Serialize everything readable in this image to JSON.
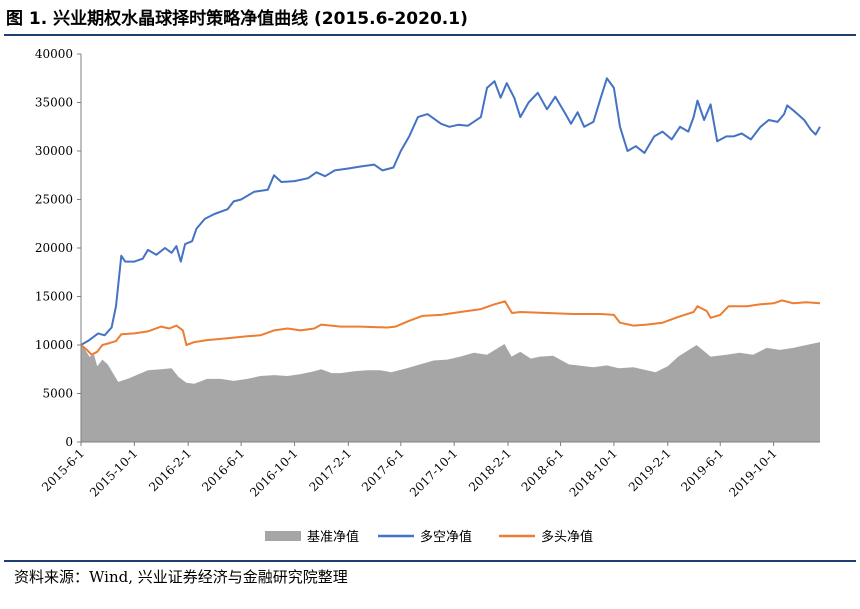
{
  "figure": {
    "title": "图 1. 兴业期权水晶球择时策略净值曲线 (2015.6-2020.1)",
    "source": "资料来源：Wind, 兴业证券经济与金融研究院整理"
  },
  "chart_data": {
    "type": "line",
    "title": "",
    "xlabel": "",
    "ylabel": "",
    "x_range": [
      "2015-06-01",
      "2020-01-15"
    ],
    "ylim": [
      0,
      40000
    ],
    "y_ticks": [
      0,
      5000,
      10000,
      15000,
      20000,
      25000,
      30000,
      35000,
      40000
    ],
    "x_tick_labels": [
      "2015-6-1",
      "2015-10-1",
      "2016-2-1",
      "2016-6-1",
      "2016-10-1",
      "2017-2-1",
      "2017-6-1",
      "2017-10-1",
      "2018-2-1",
      "2018-6-1",
      "2018-10-1",
      "2019-2-1",
      "2019-6-1",
      "2019-10-1"
    ],
    "x_tick_dates": [
      "2015-06-01",
      "2015-10-01",
      "2016-02-01",
      "2016-06-01",
      "2016-10-01",
      "2017-02-01",
      "2017-06-01",
      "2017-10-01",
      "2018-02-01",
      "2018-06-01",
      "2018-10-01",
      "2019-02-01",
      "2019-06-01",
      "2019-10-01"
    ],
    "grid": false,
    "legend_position": "bottom",
    "series": [
      {
        "name": "基准净值",
        "style": "area",
        "color": "#a6a6a6",
        "points": [
          [
            "2015-06-01",
            10000
          ],
          [
            "2015-06-10",
            9600
          ],
          [
            "2015-06-20",
            8800
          ],
          [
            "2015-07-01",
            9000
          ],
          [
            "2015-07-08",
            7800
          ],
          [
            "2015-07-20",
            8500
          ],
          [
            "2015-08-01",
            8000
          ],
          [
            "2015-08-25",
            6200
          ],
          [
            "2015-09-15",
            6500
          ],
          [
            "2015-10-01",
            6800
          ],
          [
            "2015-11-01",
            7400
          ],
          [
            "2015-12-01",
            7500
          ],
          [
            "2015-12-25",
            7600
          ],
          [
            "2016-01-10",
            6700
          ],
          [
            "2016-01-28",
            6100
          ],
          [
            "2016-02-15",
            6000
          ],
          [
            "2016-03-15",
            6500
          ],
          [
            "2016-04-15",
            6500
          ],
          [
            "2016-05-15",
            6300
          ],
          [
            "2016-06-15",
            6500
          ],
          [
            "2016-07-15",
            6800
          ],
          [
            "2016-08-15",
            6900
          ],
          [
            "2016-09-15",
            6800
          ],
          [
            "2016-10-15",
            7000
          ],
          [
            "2016-11-15",
            7300
          ],
          [
            "2016-12-01",
            7500
          ],
          [
            "2016-12-25",
            7100
          ],
          [
            "2017-01-15",
            7100
          ],
          [
            "2017-02-15",
            7300
          ],
          [
            "2017-03-15",
            7400
          ],
          [
            "2017-04-15",
            7400
          ],
          [
            "2017-05-10",
            7200
          ],
          [
            "2017-06-15",
            7600
          ],
          [
            "2017-07-15",
            8000
          ],
          [
            "2017-08-15",
            8400
          ],
          [
            "2017-09-15",
            8500
          ],
          [
            "2017-10-15",
            8800
          ],
          [
            "2017-11-15",
            9200
          ],
          [
            "2017-12-15",
            9000
          ],
          [
            "2018-01-24",
            10100
          ],
          [
            "2018-02-09",
            8800
          ],
          [
            "2018-03-01",
            9300
          ],
          [
            "2018-03-25",
            8600
          ],
          [
            "2018-04-15",
            8800
          ],
          [
            "2018-05-15",
            8900
          ],
          [
            "2018-06-20",
            8000
          ],
          [
            "2018-07-10",
            7900
          ],
          [
            "2018-08-15",
            7700
          ],
          [
            "2018-09-15",
            7900
          ],
          [
            "2018-10-12",
            7600
          ],
          [
            "2018-11-15",
            7700
          ],
          [
            "2018-12-15",
            7400
          ],
          [
            "2019-01-04",
            7200
          ],
          [
            "2019-02-01",
            7800
          ],
          [
            "2019-02-25",
            8800
          ],
          [
            "2019-04-08",
            10000
          ],
          [
            "2019-05-10",
            8800
          ],
          [
            "2019-06-15",
            9000
          ],
          [
            "2019-07-15",
            9200
          ],
          [
            "2019-08-15",
            9000
          ],
          [
            "2019-09-15",
            9700
          ],
          [
            "2019-10-15",
            9500
          ],
          [
            "2019-11-15",
            9700
          ],
          [
            "2019-12-15",
            10000
          ],
          [
            "2020-01-15",
            10300
          ]
        ]
      },
      {
        "name": "多空净值",
        "style": "line",
        "color": "#4472c4",
        "points": [
          [
            "2015-06-01",
            10000
          ],
          [
            "2015-06-20",
            10500
          ],
          [
            "2015-07-10",
            11200
          ],
          [
            "2015-07-25",
            11000
          ],
          [
            "2015-08-10",
            11800
          ],
          [
            "2015-08-20",
            14000
          ],
          [
            "2015-09-01",
            19200
          ],
          [
            "2015-09-10",
            18600
          ],
          [
            "2015-10-01",
            18600
          ],
          [
            "2015-10-20",
            18900
          ],
          [
            "2015-11-01",
            19800
          ],
          [
            "2015-11-20",
            19300
          ],
          [
            "2015-12-10",
            20000
          ],
          [
            "2015-12-25",
            19500
          ],
          [
            "2016-01-05",
            20200
          ],
          [
            "2016-01-15",
            18600
          ],
          [
            "2016-01-25",
            20400
          ],
          [
            "2016-02-10",
            20700
          ],
          [
            "2016-02-20",
            22000
          ],
          [
            "2016-03-10",
            23000
          ],
          [
            "2016-04-01",
            23500
          ],
          [
            "2016-05-01",
            24000
          ],
          [
            "2016-05-15",
            24800
          ],
          [
            "2016-06-01",
            25000
          ],
          [
            "2016-07-01",
            25800
          ],
          [
            "2016-08-01",
            26000
          ],
          [
            "2016-08-15",
            27500
          ],
          [
            "2016-09-01",
            26800
          ],
          [
            "2016-10-01",
            26900
          ],
          [
            "2016-11-01",
            27200
          ],
          [
            "2016-11-20",
            27800
          ],
          [
            "2016-12-10",
            27400
          ],
          [
            "2017-01-01",
            28000
          ],
          [
            "2017-02-01",
            28200
          ],
          [
            "2017-03-01",
            28400
          ],
          [
            "2017-04-01",
            28600
          ],
          [
            "2017-04-20",
            28000
          ],
          [
            "2017-05-15",
            28300
          ],
          [
            "2017-06-01",
            30000
          ],
          [
            "2017-06-20",
            31500
          ],
          [
            "2017-07-10",
            33500
          ],
          [
            "2017-08-01",
            33800
          ],
          [
            "2017-09-01",
            32800
          ],
          [
            "2017-09-20",
            32500
          ],
          [
            "2017-10-10",
            32700
          ],
          [
            "2017-11-01",
            32600
          ],
          [
            "2017-12-01",
            33500
          ],
          [
            "2017-12-15",
            36500
          ],
          [
            "2018-01-01",
            37200
          ],
          [
            "2018-01-15",
            35500
          ],
          [
            "2018-01-29",
            37000
          ],
          [
            "2018-02-15",
            35500
          ],
          [
            "2018-03-01",
            33500
          ],
          [
            "2018-03-20",
            35000
          ],
          [
            "2018-04-10",
            36000
          ],
          [
            "2018-05-01",
            34300
          ],
          [
            "2018-05-20",
            35600
          ],
          [
            "2018-06-10",
            34000
          ],
          [
            "2018-06-25",
            32800
          ],
          [
            "2018-07-10",
            34000
          ],
          [
            "2018-07-25",
            32500
          ],
          [
            "2018-08-15",
            33000
          ],
          [
            "2018-09-01",
            35500
          ],
          [
            "2018-09-15",
            37500
          ],
          [
            "2018-10-01",
            36500
          ],
          [
            "2018-10-15",
            32500
          ],
          [
            "2018-11-01",
            30000
          ],
          [
            "2018-11-20",
            30500
          ],
          [
            "2018-12-10",
            29800
          ],
          [
            "2019-01-01",
            31500
          ],
          [
            "2019-01-20",
            32000
          ],
          [
            "2019-02-10",
            31200
          ],
          [
            "2019-03-01",
            32500
          ],
          [
            "2019-03-20",
            32000
          ],
          [
            "2019-04-01",
            33500
          ],
          [
            "2019-04-10",
            35200
          ],
          [
            "2019-04-25",
            33200
          ],
          [
            "2019-05-10",
            34800
          ],
          [
            "2019-05-25",
            31000
          ],
          [
            "2019-06-15",
            31500
          ],
          [
            "2019-07-01",
            31500
          ],
          [
            "2019-07-20",
            31800
          ],
          [
            "2019-08-10",
            31200
          ],
          [
            "2019-09-01",
            32500
          ],
          [
            "2019-09-20",
            33200
          ],
          [
            "2019-10-10",
            33000
          ],
          [
            "2019-10-25",
            33800
          ],
          [
            "2019-11-01",
            34700
          ],
          [
            "2019-11-20",
            34000
          ],
          [
            "2019-12-10",
            33200
          ],
          [
            "2019-12-25",
            32200
          ],
          [
            "2020-01-05",
            31700
          ],
          [
            "2020-01-15",
            32500
          ]
        ]
      },
      {
        "name": "多头净值",
        "style": "line",
        "color": "#ed7d31",
        "points": [
          [
            "2015-06-01",
            10000
          ],
          [
            "2015-06-15",
            9500
          ],
          [
            "2015-06-25",
            9000
          ],
          [
            "2015-07-08",
            9300
          ],
          [
            "2015-07-20",
            10000
          ],
          [
            "2015-08-05",
            10200
          ],
          [
            "2015-08-20",
            10400
          ],
          [
            "2015-09-01",
            11100
          ],
          [
            "2015-10-01",
            11200
          ],
          [
            "2015-11-01",
            11400
          ],
          [
            "2015-12-01",
            11900
          ],
          [
            "2015-12-20",
            11700
          ],
          [
            "2016-01-05",
            12000
          ],
          [
            "2016-01-20",
            11500
          ],
          [
            "2016-01-28",
            10000
          ],
          [
            "2016-02-15",
            10300
          ],
          [
            "2016-03-15",
            10500
          ],
          [
            "2016-05-01",
            10700
          ],
          [
            "2016-06-15",
            10900
          ],
          [
            "2016-07-15",
            11000
          ],
          [
            "2016-08-15",
            11500
          ],
          [
            "2016-09-15",
            11700
          ],
          [
            "2016-10-15",
            11500
          ],
          [
            "2016-11-15",
            11700
          ],
          [
            "2016-12-01",
            12100
          ],
          [
            "2017-01-15",
            11900
          ],
          [
            "2017-03-01",
            11900
          ],
          [
            "2017-05-01",
            11800
          ],
          [
            "2017-05-20",
            11900
          ],
          [
            "2017-06-20",
            12500
          ],
          [
            "2017-07-20",
            13000
          ],
          [
            "2017-09-01",
            13100
          ],
          [
            "2017-10-15",
            13400
          ],
          [
            "2017-12-01",
            13700
          ],
          [
            "2018-01-01",
            14200
          ],
          [
            "2018-01-25",
            14500
          ],
          [
            "2018-02-10",
            13300
          ],
          [
            "2018-03-01",
            13400
          ],
          [
            "2018-05-01",
            13300
          ],
          [
            "2018-07-01",
            13200
          ],
          [
            "2018-09-01",
            13200
          ],
          [
            "2018-10-01",
            13100
          ],
          [
            "2018-10-15",
            12300
          ],
          [
            "2018-11-15",
            12000
          ],
          [
            "2018-12-15",
            12100
          ],
          [
            "2019-01-20",
            12300
          ],
          [
            "2019-02-25",
            12900
          ],
          [
            "2019-04-01",
            13400
          ],
          [
            "2019-04-10",
            14000
          ],
          [
            "2019-05-01",
            13500
          ],
          [
            "2019-05-10",
            12800
          ],
          [
            "2019-06-01",
            13100
          ],
          [
            "2019-06-20",
            14000
          ],
          [
            "2019-08-01",
            14000
          ],
          [
            "2019-09-01",
            14200
          ],
          [
            "2019-10-01",
            14300
          ],
          [
            "2019-10-20",
            14600
          ],
          [
            "2019-11-15",
            14300
          ],
          [
            "2019-12-15",
            14400
          ],
          [
            "2020-01-15",
            14300
          ]
        ]
      }
    ]
  }
}
